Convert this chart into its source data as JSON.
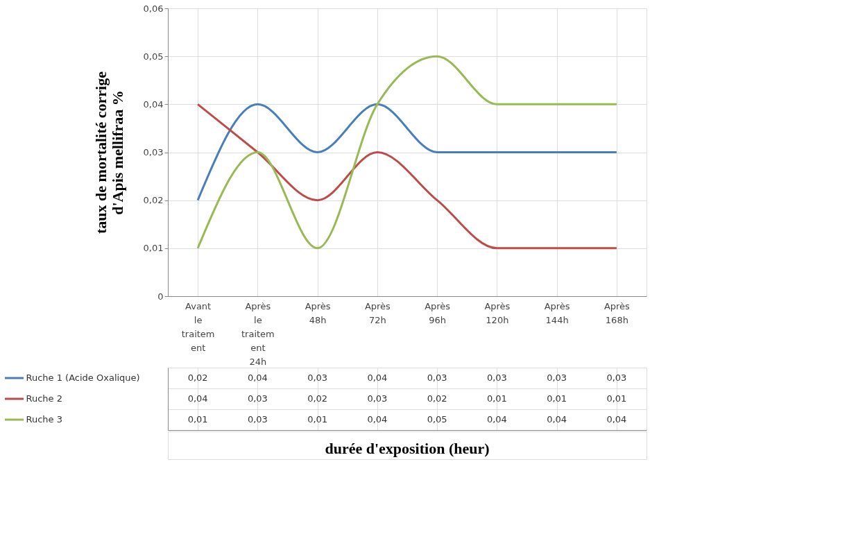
{
  "chart_data": {
    "type": "line",
    "annotations": [
      "durée d'exposition (heur)"
    ],
    "ylabel": "taux de mortalité corrige\nd'Apis mellifraa %",
    "categories": [
      "Avant le traitem ent",
      "Après le traitem ent 24h",
      "Après 48h",
      "Après 72h",
      "Après 96h",
      "Après 120h",
      "Après 144h",
      "Après 168h"
    ],
    "series": [
      {
        "name": "Ruche 1 (Acide Oxalique)",
        "color": "#4a7ebb",
        "values": [
          0.02,
          0.04,
          0.03,
          0.04,
          0.03,
          0.03,
          0.03,
          0.03
        ],
        "value_labels": [
          "0,02",
          "0,04",
          "0,03",
          "0,04",
          "0,03",
          "0,03",
          "0,03",
          "0,03"
        ]
      },
      {
        "name": "Ruche 2",
        "color": "#be4b48",
        "values": [
          0.04,
          0.03,
          0.02,
          0.03,
          0.02,
          0.01,
          0.01,
          0.01
        ],
        "value_labels": [
          "0,04",
          "0,03",
          "0,02",
          "0,03",
          "0,02",
          "0,01",
          "0,01",
          "0,01"
        ]
      },
      {
        "name": "Ruche 3",
        "color": "#98b954",
        "values": [
          0.01,
          0.03,
          0.01,
          0.04,
          0.05,
          0.04,
          0.04,
          0.04
        ],
        "value_labels": [
          "0,01",
          "0,03",
          "0,01",
          "0,04",
          "0,05",
          "0,04",
          "0,04",
          "0,04"
        ]
      }
    ],
    "ylim": [
      0,
      0.06
    ],
    "yticks": [
      0,
      {
        "value": 0.01,
        "label": "0,01"
      },
      {
        "value": 0.02,
        "label": "0,02"
      },
      {
        "value": 0.03,
        "label": "0,03"
      },
      {
        "value": 0.04,
        "label": "0,04"
      },
      {
        "value": 0.05,
        "label": "0,05"
      },
      {
        "value": 0.06,
        "label": "0,06"
      }
    ],
    "grid": true,
    "legend": "bottom",
    "marker": "none",
    "line_style": "solid"
  }
}
